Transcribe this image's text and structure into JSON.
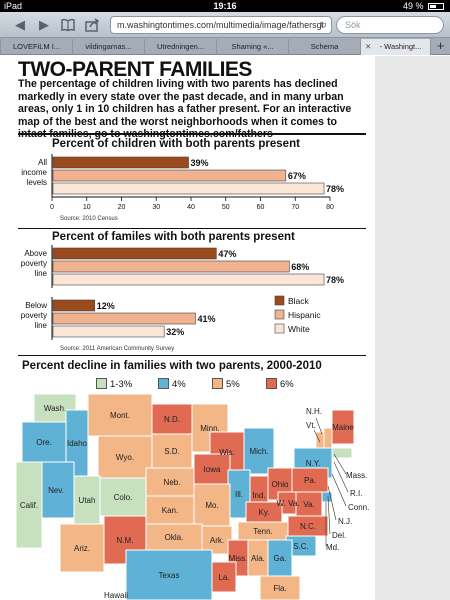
{
  "status_bar": {
    "carrier": "iPad",
    "time": "19:16",
    "battery": "49 %"
  },
  "browser": {
    "url": "m.washingtontimes.com/multimedia/image/fathersgr",
    "search_placeholder": "Sök",
    "tabs": [
      "LOVEFiLM I...",
      "vildingarnas...",
      "Utredningen...",
      "Shaming «...",
      "Schema",
      "- Washingt..."
    ],
    "active_tab": 5
  },
  "article": {
    "headline": "TWO-PARENT FAMILIES",
    "dek": "The percentage of children living with two parents has declined markedly in every state over the past decade, and in many urban areas, only 1 in 10 children has a father present. For an interactive map of the best and the worst neighborhoods when it comes to intact families, go to washingtontimes.com/fathers"
  },
  "colors": {
    "black": "#9b4a1c",
    "hispanic": "#f0b28f",
    "white": "#fbe5d6"
  },
  "chart_data": [
    {
      "type": "bar",
      "title": "Percent of children with both parents present",
      "categories": [
        "All income levels"
      ],
      "series": [
        {
          "name": "Black",
          "values": [
            39
          ]
        },
        {
          "name": "Hispanic",
          "values": [
            67
          ]
        },
        {
          "name": "White",
          "values": [
            78
          ]
        }
      ],
      "value_labels": [
        "39%",
        "67%",
        "78%"
      ],
      "xlim": [
        0,
        80
      ],
      "xticks": [
        0,
        10,
        20,
        30,
        40,
        50,
        60,
        70,
        80
      ],
      "source": "Source: 2010 Census"
    },
    {
      "type": "bar",
      "title": "Percent of familes with both parents present",
      "categories": [
        "Above poverty line",
        "Below poverty line"
      ],
      "series": [
        {
          "name": "Black",
          "values": [
            47,
            12
          ]
        },
        {
          "name": "Hispanic",
          "values": [
            68,
            41
          ]
        },
        {
          "name": "White",
          "values": [
            78,
            32
          ]
        }
      ],
      "value_labels": [
        [
          "47%",
          "68%",
          "78%"
        ],
        [
          "12%",
          "41%",
          "32%"
        ]
      ],
      "xlim": [
        0,
        80
      ],
      "legend": [
        "Black",
        "Hispanic",
        "White"
      ],
      "source": "Source: 2011 American Community Survey"
    }
  ],
  "map": {
    "title": "Percent decline in families with two parents, 2000-2010",
    "legend": [
      {
        "label": "1-3%",
        "color": "#c7e1bf"
      },
      {
        "label": "4%",
        "color": "#5fb1d6"
      },
      {
        "label": "5%",
        "color": "#f3b687"
      },
      {
        "label": "6%",
        "color": "#e06b52"
      }
    ],
    "state_labels": [
      "Wash.",
      "Ore.",
      "Idaho",
      "Mont.",
      "N.D.",
      "Minn.",
      "Wis.",
      "Mich.",
      "N.Y.",
      "Vt.",
      "N.H.",
      "Maine",
      "Mass.",
      "R.I.",
      "Conn.",
      "N.J.",
      "Del.",
      "Md.",
      "S.D.",
      "Wyo.",
      "Neb.",
      "Iowa",
      "Ill.",
      "Ind.",
      "Ohio",
      "Pa.",
      "W. Va.",
      "Va.",
      "Nev.",
      "Utah",
      "Colo.",
      "Kan.",
      "Mo.",
      "Ky.",
      "Calif.",
      "Tenn.",
      "N.C.",
      "S.C.",
      "Ariz.",
      "N.M.",
      "Okla.",
      "Ark.",
      "Miss.",
      "Ala.",
      "Ga.",
      "Texas",
      "La.",
      "Fla.",
      "Hawaii"
    ]
  }
}
